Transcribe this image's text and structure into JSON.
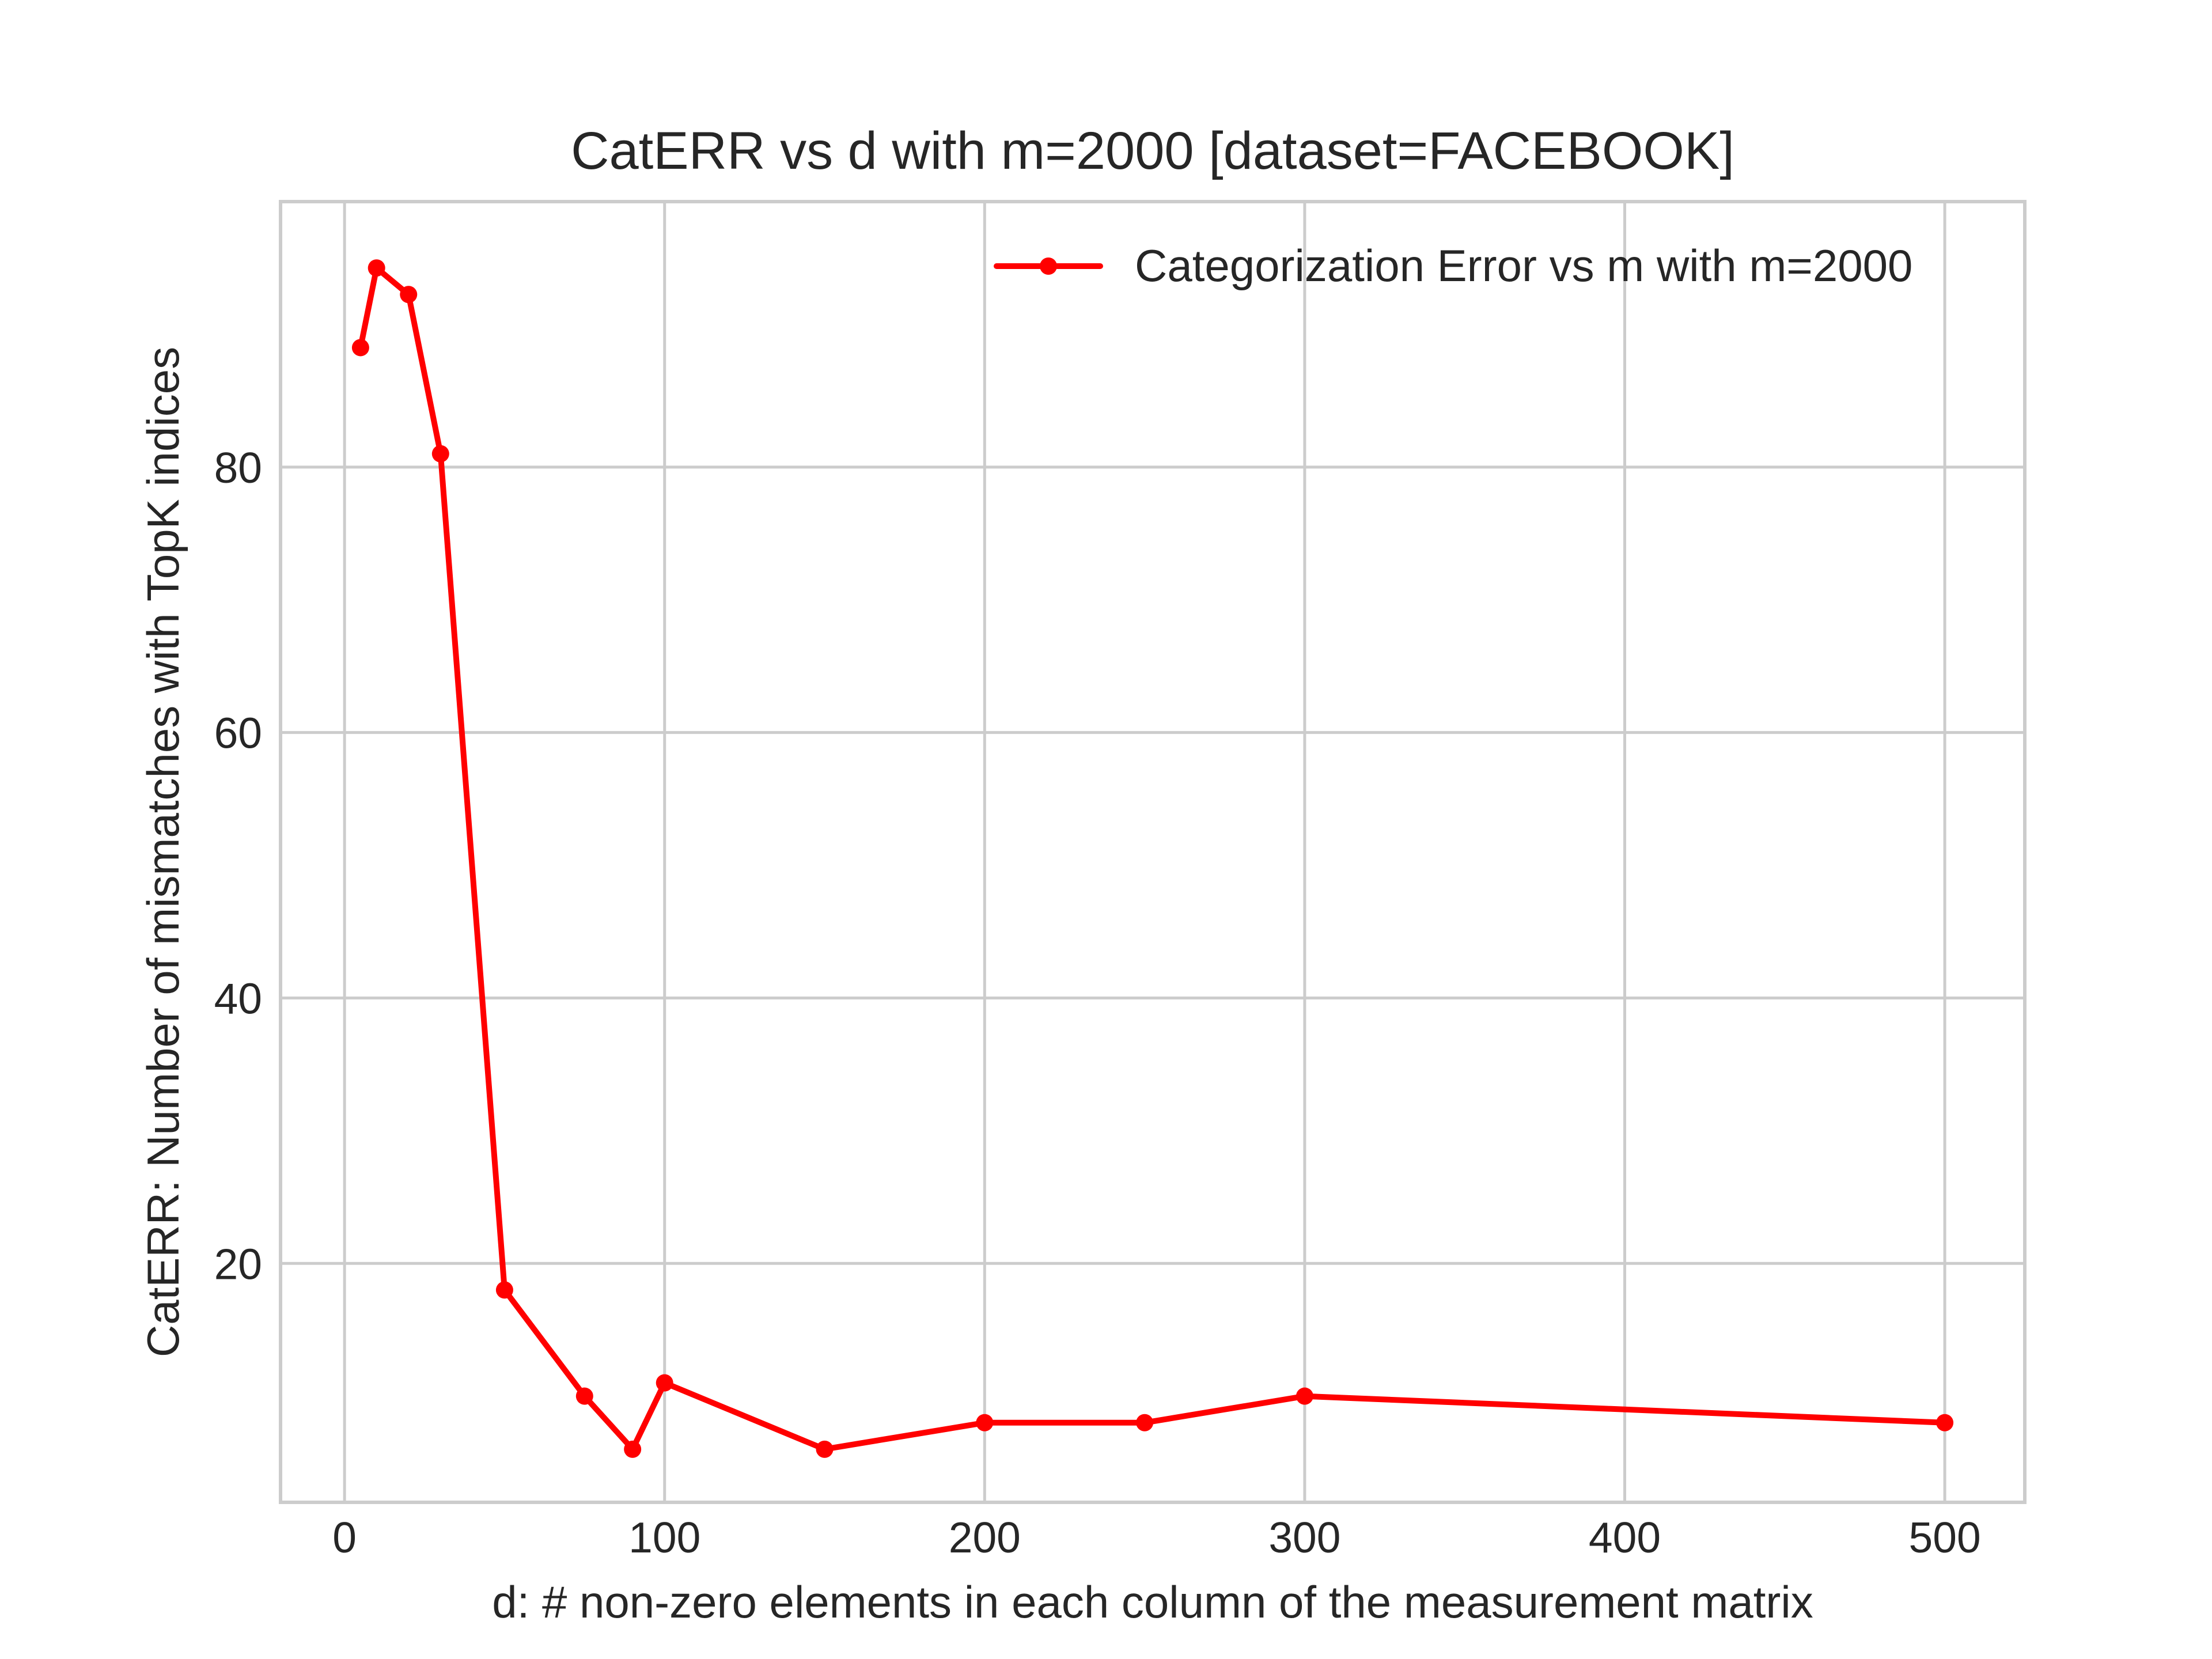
{
  "chart_data": {
    "type": "line",
    "title": "CatERR vs d with m=2000 [dataset=FACEBOOK]",
    "xlabel": "d: # non-zero elements in each column of the measurement matrix",
    "ylabel": "CatERR: Number of mismatches with TopK indices",
    "xlim": [
      -20,
      525
    ],
    "ylim": [
      2,
      100
    ],
    "xticks": [
      0,
      100,
      200,
      300,
      400,
      500
    ],
    "yticks": [
      20,
      40,
      60,
      80
    ],
    "grid": true,
    "legend_position": "top-right",
    "series": [
      {
        "name": "Categorization Error vs m with m=2000",
        "color": "#ff0000",
        "marker": "circle",
        "x": [
          5,
          10,
          20,
          30,
          50,
          75,
          90,
          100,
          150,
          200,
          250,
          300,
          500
        ],
        "y": [
          89,
          95,
          93,
          81,
          18,
          10,
          6,
          11,
          6,
          8,
          8,
          10,
          8
        ]
      }
    ]
  }
}
